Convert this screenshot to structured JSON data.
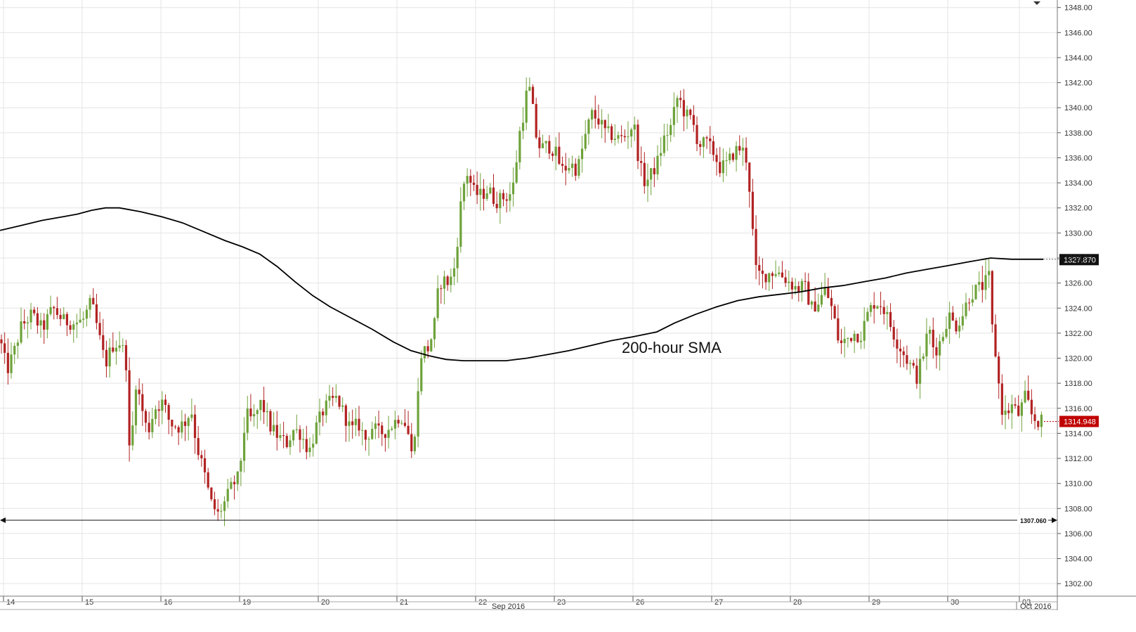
{
  "chart_data": {
    "type": "candlestick",
    "timeframe": "hourly",
    "y_axis": {
      "range": [
        1301,
        1348.6
      ],
      "ticks": [
        "1302.00",
        "1304.00",
        "1306.00",
        "1308.00",
        "1310.00",
        "1312.00",
        "1314.00",
        "1316.00",
        "1318.00",
        "1320.00",
        "1322.00",
        "1324.00",
        "1326.00",
        "1328.00",
        "1330.00",
        "1332.00",
        "1334.00",
        "1336.00",
        "1338.00",
        "1340.00",
        "1342.00",
        "1344.00",
        "1346.00",
        "1348.00"
      ]
    },
    "x_axis": {
      "day_labels": [
        "14",
        "15",
        "16",
        "19",
        "20",
        "21",
        "22",
        "23",
        "26",
        "27",
        "28",
        "29",
        "30",
        "03"
      ],
      "month_labels": [
        "Sep 2016",
        "Oct 2016"
      ]
    },
    "sma": {
      "label": "200-hour SMA",
      "last_value": "1327.870",
      "color": "#000000",
      "points": [
        [
          0,
          1330.2
        ],
        [
          30,
          1330.6
        ],
        [
          60,
          1331.0
        ],
        [
          90,
          1331.3
        ],
        [
          110,
          1331.5
        ],
        [
          130,
          1331.8
        ],
        [
          150,
          1332.0
        ],
        [
          170,
          1332.0
        ],
        [
          200,
          1331.7
        ],
        [
          230,
          1331.3
        ],
        [
          260,
          1330.8
        ],
        [
          290,
          1330.1
        ],
        [
          320,
          1329.4
        ],
        [
          345,
          1328.9
        ],
        [
          370,
          1328.3
        ],
        [
          395,
          1327.3
        ],
        [
          420,
          1326.1
        ],
        [
          445,
          1325.0
        ],
        [
          470,
          1324.1
        ],
        [
          500,
          1323.2
        ],
        [
          530,
          1322.3
        ],
        [
          560,
          1321.3
        ],
        [
          585,
          1320.6
        ],
        [
          610,
          1320.2
        ],
        [
          635,
          1319.9
        ],
        [
          660,
          1319.8
        ],
        [
          690,
          1319.8
        ],
        [
          720,
          1319.8
        ],
        [
          750,
          1320.0
        ],
        [
          780,
          1320.3
        ],
        [
          810,
          1320.6
        ],
        [
          840,
          1321.0
        ],
        [
          870,
          1321.4
        ],
        [
          900,
          1321.7
        ],
        [
          935,
          1322.1
        ],
        [
          960,
          1322.8
        ],
        [
          990,
          1323.5
        ],
        [
          1020,
          1324.1
        ],
        [
          1050,
          1324.6
        ],
        [
          1080,
          1324.9
        ],
        [
          1110,
          1325.1
        ],
        [
          1140,
          1325.3
        ],
        [
          1170,
          1325.6
        ],
        [
          1200,
          1325.8
        ],
        [
          1230,
          1326.1
        ],
        [
          1260,
          1326.4
        ],
        [
          1290,
          1326.8
        ],
        [
          1320,
          1327.1
        ],
        [
          1350,
          1327.4
        ],
        [
          1380,
          1327.7
        ],
        [
          1410,
          1328.0
        ],
        [
          1440,
          1327.9
        ],
        [
          1485,
          1327.9
        ]
      ]
    },
    "support_line": {
      "value": "1307.060"
    },
    "last_price": {
      "value": "1314.948",
      "color": "#c00000"
    },
    "colors": {
      "up": "#6ea23a",
      "down": "#b22222"
    },
    "candles_anchor": [
      [
        0,
        1321.5
      ],
      [
        10,
        1319.0
      ],
      [
        20,
        1320.5
      ],
      [
        30,
        1322.5
      ],
      [
        45,
        1323.5
      ],
      [
        60,
        1322.3
      ],
      [
        75,
        1324.0
      ],
      [
        90,
        1323.0
      ],
      [
        105,
        1322.8
      ],
      [
        118,
        1323.0
      ],
      [
        130,
        1324.5
      ],
      [
        140,
        1322.0
      ],
      [
        150,
        1319.5
      ],
      [
        160,
        1321.0
      ],
      [
        172,
        1321.3
      ],
      [
        180,
        1319.5
      ],
      [
        185,
        1311.2
      ],
      [
        193,
        1318.2
      ],
      [
        200,
        1316.5
      ],
      [
        210,
        1314.0
      ],
      [
        220,
        1316.0
      ],
      [
        232,
        1316.5
      ],
      [
        242,
        1314.8
      ],
      [
        255,
        1314.5
      ],
      [
        265,
        1315.0
      ],
      [
        272,
        1316.0
      ],
      [
        280,
        1313.0
      ],
      [
        290,
        1311.0
      ],
      [
        300,
        1308.5
      ],
      [
        310,
        1307.5
      ],
      [
        320,
        1308.5
      ],
      [
        330,
        1309.8
      ],
      [
        340,
        1310.5
      ],
      [
        350,
        1315.5
      ],
      [
        360,
        1315.0
      ],
      [
        372,
        1316.5
      ],
      [
        385,
        1314.5
      ],
      [
        395,
        1313.8
      ],
      [
        408,
        1313.2
      ],
      [
        418,
        1314.3
      ],
      [
        428,
        1314.0
      ],
      [
        440,
        1312.5
      ],
      [
        450,
        1314.5
      ],
      [
        460,
        1315.8
      ],
      [
        470,
        1316.5
      ],
      [
        480,
        1316.8
      ],
      [
        490,
        1315.5
      ],
      [
        500,
        1314.2
      ],
      [
        510,
        1314.8
      ],
      [
        520,
        1313.5
      ],
      [
        530,
        1314.5
      ],
      [
        540,
        1314.0
      ],
      [
        550,
        1314.2
      ],
      [
        560,
        1314.8
      ],
      [
        570,
        1315.5
      ],
      [
        580,
        1314.5
      ],
      [
        585,
        1312.0
      ],
      [
        592,
        1315.0
      ],
      [
        600,
        1320.5
      ],
      [
        610,
        1320.8
      ],
      [
        618,
        1322.5
      ],
      [
        625,
        1326.0
      ],
      [
        633,
        1326.2
      ],
      [
        640,
        1326.0
      ],
      [
        648,
        1327.5
      ],
      [
        652,
        1330.0
      ],
      [
        658,
        1333.5
      ],
      [
        665,
        1334.8
      ],
      [
        675,
        1333.2
      ],
      [
        685,
        1333.0
      ],
      [
        695,
        1333.5
      ],
      [
        705,
        1332.5
      ],
      [
        715,
        1332.8
      ],
      [
        725,
        1333.0
      ],
      [
        732,
        1334.0
      ],
      [
        738,
        1337.5
      ],
      [
        745,
        1339.5
      ],
      [
        752,
        1342.0
      ],
      [
        758,
        1340.0
      ],
      [
        765,
        1337.0
      ],
      [
        772,
        1336.8
      ],
      [
        780,
        1337.0
      ],
      [
        790,
        1336.5
      ],
      [
        800,
        1335.0
      ],
      [
        812,
        1335.5
      ],
      [
        822,
        1335.0
      ],
      [
        832,
        1337.5
      ],
      [
        842,
        1339.5
      ],
      [
        852,
        1339.0
      ],
      [
        862,
        1338.0
      ],
      [
        872,
        1337.8
      ],
      [
        882,
        1337.5
      ],
      [
        892,
        1337.8
      ],
      [
        902,
        1338.8
      ],
      [
        910,
        1335.5
      ],
      [
        918,
        1334.0
      ],
      [
        925,
        1334.5
      ],
      [
        935,
        1335.5
      ],
      [
        945,
        1337.5
      ],
      [
        955,
        1338.5
      ],
      [
        965,
        1341.0
      ],
      [
        975,
        1339.5
      ],
      [
        985,
        1339.0
      ],
      [
        995,
        1337.0
      ],
      [
        1005,
        1337.2
      ],
      [
        1015,
        1336.5
      ],
      [
        1025,
        1335.2
      ],
      [
        1035,
        1335.5
      ],
      [
        1045,
        1336.5
      ],
      [
        1055,
        1336.8
      ],
      [
        1062,
        1336.0
      ],
      [
        1068,
        1333.0
      ],
      [
        1075,
        1327.0
      ],
      [
        1085,
        1326.5
      ],
      [
        1095,
        1326.8
      ],
      [
        1105,
        1327.0
      ],
      [
        1115,
        1326.5
      ],
      [
        1125,
        1326.0
      ],
      [
        1135,
        1325.5
      ],
      [
        1145,
        1325.8
      ],
      [
        1155,
        1324.0
      ],
      [
        1165,
        1324.5
      ],
      [
        1175,
        1325.5
      ],
      [
        1185,
        1323.8
      ],
      [
        1195,
        1321.0
      ],
      [
        1205,
        1321.5
      ],
      [
        1215,
        1322.0
      ],
      [
        1225,
        1321.8
      ],
      [
        1235,
        1323.5
      ],
      [
        1245,
        1324.5
      ],
      [
        1255,
        1324.3
      ],
      [
        1265,
        1323.0
      ],
      [
        1275,
        1321.5
      ],
      [
        1285,
        1320.5
      ],
      [
        1295,
        1319.5
      ],
      [
        1305,
        1318.5
      ],
      [
        1315,
        1320.5
      ],
      [
        1322,
        1322.5
      ],
      [
        1330,
        1320.5
      ],
      [
        1340,
        1321.5
      ],
      [
        1350,
        1323.5
      ],
      [
        1360,
        1322.5
      ],
      [
        1370,
        1323.5
      ],
      [
        1380,
        1325.0
      ],
      [
        1390,
        1325.5
      ],
      [
        1400,
        1325.8
      ],
      [
        1408,
        1326.5
      ],
      [
        1412,
        1322.5
      ],
      [
        1418,
        1320.0
      ],
      [
        1425,
        1316.0
      ],
      [
        1432,
        1315.5
      ],
      [
        1440,
        1316.2
      ],
      [
        1450,
        1315.5
      ],
      [
        1460,
        1317.0
      ],
      [
        1468,
        1315.5
      ],
      [
        1475,
        1315.0
      ],
      [
        1485,
        1314.9
      ]
    ]
  }
}
